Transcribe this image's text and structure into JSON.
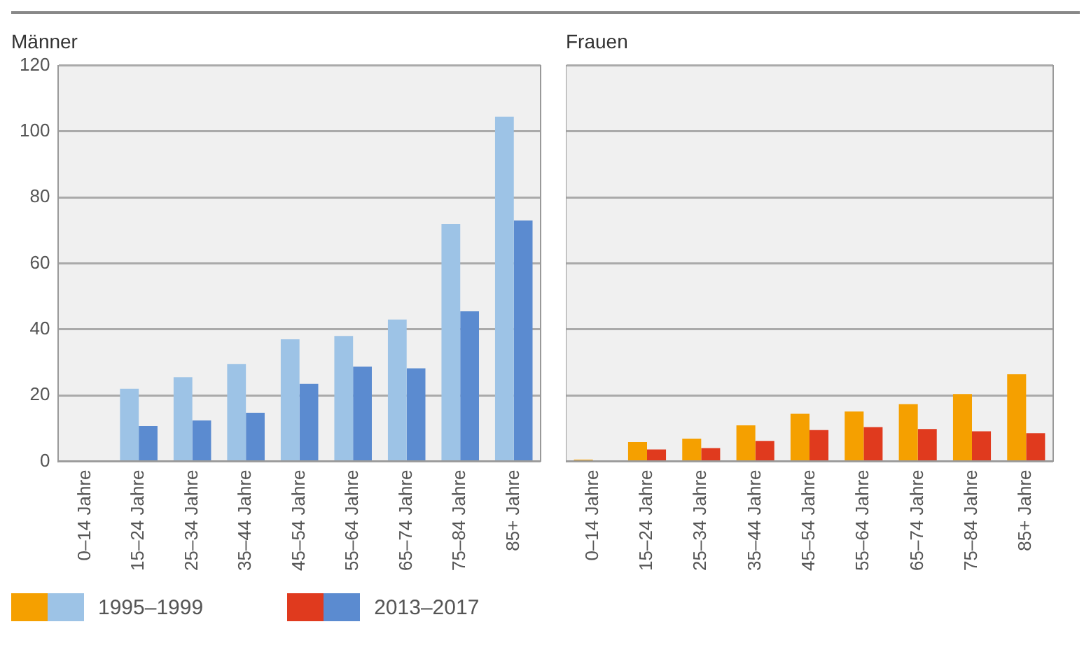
{
  "chart_data": [
    {
      "type": "bar",
      "title": "Männer",
      "categories": [
        "0–14 Jahre",
        "15–24 Jahre",
        "25–34 Jahre",
        "35–44 Jahre",
        "45–54 Jahre",
        "55–64 Jahre",
        "65–74 Jahre",
        "75–84 Jahre",
        "85+ Jahre"
      ],
      "series": [
        {
          "name": "1995–1999",
          "color": "#9dc3e6",
          "values": [
            0,
            22,
            25.5,
            29.5,
            37,
            38,
            43,
            72,
            104.5
          ]
        },
        {
          "name": "2013–2017",
          "color": "#5b8bd0",
          "values": [
            0,
            10.7,
            12.4,
            14.7,
            23.5,
            28.7,
            28.2,
            45.5,
            73
          ]
        }
      ],
      "ylim": [
        0,
        120
      ],
      "yticks": [
        0,
        20,
        40,
        60,
        80,
        100,
        120
      ],
      "grid": "y",
      "legend": "bottom left"
    },
    {
      "type": "bar",
      "title": "Frauen",
      "categories": [
        "0–14 Jahre",
        "15–24 Jahre",
        "25–34 Jahre",
        "35–44 Jahre",
        "45–54 Jahre",
        "55–64 Jahre",
        "65–74 Jahre",
        "75–84 Jahre",
        "85+ Jahre"
      ],
      "series": [
        {
          "color": "#f5a000",
          "values": [
            0.5,
            5.8,
            6.9,
            10.9,
            14.4,
            15.1,
            17.3,
            20.4,
            26.4
          ]
        },
        {
          "color": "#e03a1e",
          "values": [
            0.3,
            3.6,
            4,
            6.2,
            9.5,
            10.4,
            9.8,
            9.1,
            8.5
          ]
        }
      ],
      "ylim": [
        0,
        120
      ],
      "yticks": [
        0,
        20,
        40,
        60,
        80,
        100,
        120
      ],
      "grid": "y",
      "tick_labels": "x"
    }
  ]
}
